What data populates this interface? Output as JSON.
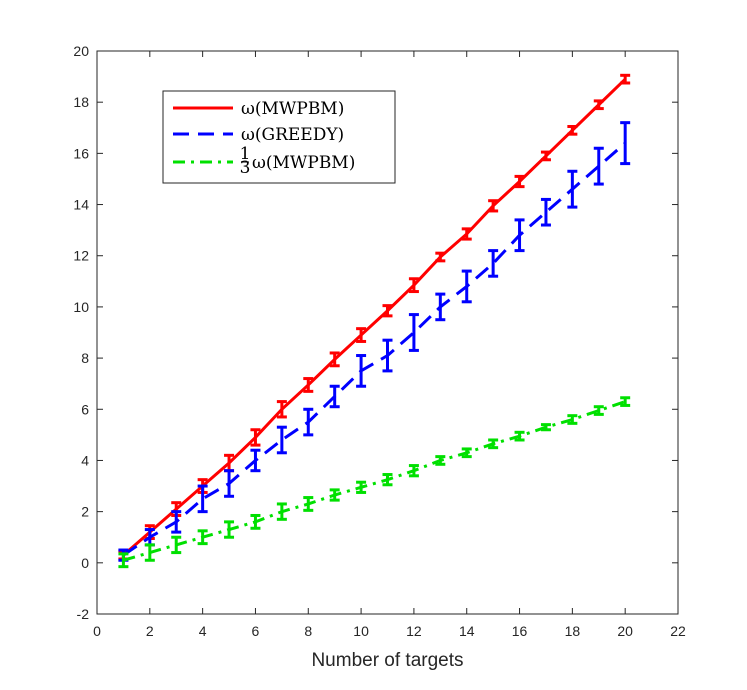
{
  "chart_data": {
    "type": "line",
    "title": "",
    "xlabel": "Number of targets",
    "ylabel": "",
    "xlim": [
      0,
      22
    ],
    "ylim": [
      -2,
      20
    ],
    "xticks": [
      0,
      2,
      4,
      6,
      8,
      10,
      12,
      14,
      16,
      18,
      20,
      22
    ],
    "yticks": [
      -2,
      0,
      2,
      4,
      6,
      8,
      10,
      12,
      14,
      16,
      18,
      20
    ],
    "grid": false,
    "legend_position": "top-left",
    "x": [
      1,
      2,
      3,
      4,
      5,
      6,
      7,
      8,
      9,
      10,
      11,
      12,
      13,
      14,
      15,
      16,
      17,
      18,
      19,
      20
    ],
    "series": [
      {
        "name": "ω(MWPBM)",
        "legend_label": "ω(MWPBM)",
        "color": "#ff0000",
        "line_style": "solid",
        "values": [
          0.3,
          1.2,
          2.1,
          3.0,
          3.9,
          4.9,
          6.0,
          6.95,
          7.95,
          8.9,
          9.85,
          10.85,
          11.95,
          12.85,
          13.95,
          14.9,
          15.9,
          16.9,
          17.9,
          18.9
        ],
        "errors": [
          0.15,
          0.25,
          0.25,
          0.25,
          0.3,
          0.3,
          0.3,
          0.25,
          0.25,
          0.25,
          0.2,
          0.25,
          0.15,
          0.2,
          0.2,
          0.2,
          0.15,
          0.15,
          0.15,
          0.15
        ]
      },
      {
        "name": "ω(GREEDY)",
        "legend_label": "ω(GREEDY)",
        "color": "#0000ff",
        "line_style": "dashed",
        "values": [
          0.3,
          1.0,
          1.6,
          2.5,
          3.1,
          4.0,
          4.8,
          5.5,
          6.5,
          7.5,
          8.1,
          9.0,
          10.0,
          10.8,
          11.7,
          12.8,
          13.7,
          14.6,
          15.5,
          16.4
        ],
        "errors": [
          0.2,
          0.3,
          0.4,
          0.5,
          0.5,
          0.4,
          0.5,
          0.5,
          0.4,
          0.6,
          0.6,
          0.7,
          0.5,
          0.6,
          0.5,
          0.6,
          0.5,
          0.7,
          0.7,
          0.8
        ]
      },
      {
        "name": "1/3 ω(MWPBM)",
        "legend_label": "ω(MWPBM)",
        "legend_prefix_num": "1",
        "legend_prefix_den": "3",
        "color": "#00e000",
        "line_style": "dashdot",
        "values": [
          0.1,
          0.4,
          0.7,
          1.0,
          1.3,
          1.6,
          2.0,
          2.3,
          2.65,
          2.95,
          3.25,
          3.6,
          4.0,
          4.3,
          4.65,
          4.95,
          5.3,
          5.6,
          5.95,
          6.3
        ],
        "errors": [
          0.25,
          0.3,
          0.3,
          0.25,
          0.3,
          0.25,
          0.3,
          0.25,
          0.2,
          0.2,
          0.2,
          0.2,
          0.15,
          0.15,
          0.15,
          0.15,
          0.1,
          0.15,
          0.15,
          0.15
        ]
      }
    ]
  }
}
